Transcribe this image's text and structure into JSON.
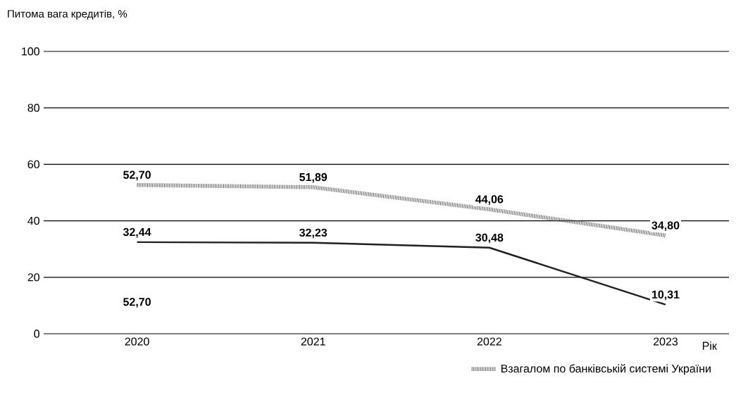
{
  "chart_data": {
    "type": "line",
    "ylabel": "Питома вага кредитів, %",
    "xlabel": "Рік",
    "categories": [
      "2020",
      "2021",
      "2022",
      "2023"
    ],
    "series": [
      {
        "color": "#231f20",
        "line_style": "solid",
        "values": [
          32.44,
          32.23,
          30.48,
          10.31
        ],
        "value_labels": [
          "32,44",
          "32,23",
          "30,48",
          "10,31"
        ]
      },
      {
        "name": "Взагалом по банківській системі України",
        "color": "#58595b",
        "line_style": "dotted",
        "values": [
          52.7,
          51.89,
          44.06,
          34.8
        ],
        "value_labels": [
          "52,70",
          "51,89",
          "44,06",
          "34,80"
        ]
      }
    ],
    "ylim": [
      0,
      100
    ],
    "yticks": [
      0,
      20,
      40,
      60,
      80,
      100
    ],
    "grid": "y",
    "legend": "bottom",
    "marker": "none",
    "annotations": [
      "52,70"
    ]
  }
}
